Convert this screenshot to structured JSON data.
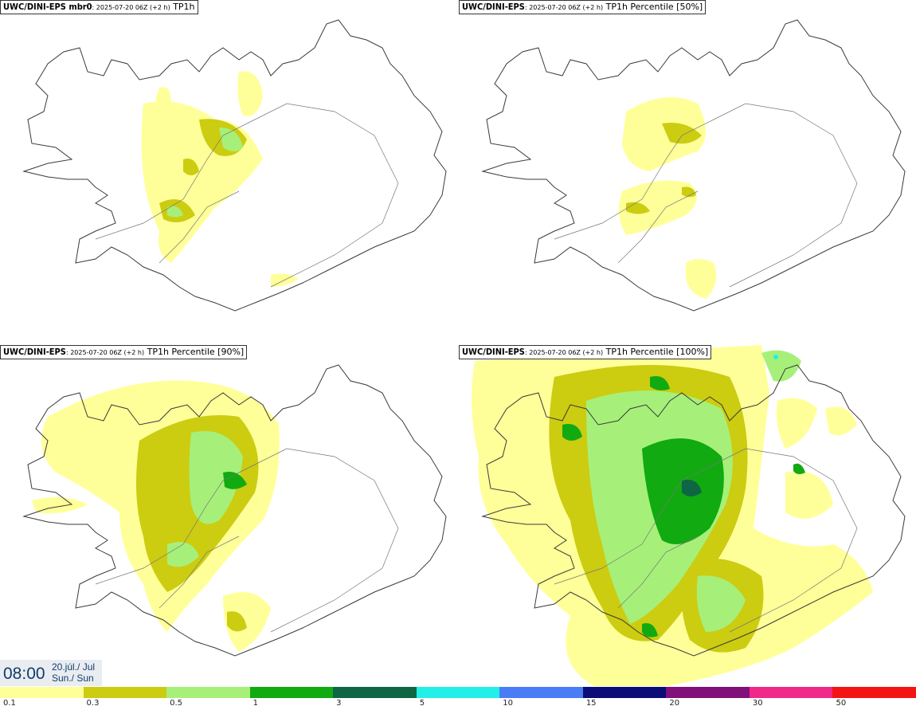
{
  "panels": [
    {
      "model": "UWC/DINI-EPS mbr0",
      "run": "2025-07-20 06Z (+2 h)",
      "field": "TP1h"
    },
    {
      "model": "UWC/DINI-EPS",
      "run": "2025-07-20 06Z (+2 h)",
      "field": "TP1h Percentile [50%]"
    },
    {
      "model": "UWC/DINI-EPS",
      "run": "2025-07-20 06Z (+2 h)",
      "field": "TP1h Percentile [90%]"
    },
    {
      "model": "UWC/DINI-EPS",
      "run": "2025-07-20 06Z (+2 h)",
      "field": "TP1h Percentile [100%]"
    }
  ],
  "valid_time": {
    "time": "08:00",
    "date_line1": "20.júl./ Jul",
    "date_line2": "Sun./ Sun"
  },
  "legend": {
    "labels": [
      "0.1",
      "0.3",
      "0.5",
      "1",
      "3",
      "5",
      "10",
      "15",
      "20",
      "30",
      "50"
    ],
    "colors": [
      "#ffff99",
      "#cccc11",
      "#a6f07a",
      "#11aa11",
      "#0f6644",
      "#22f0e8",
      "#4a7cf5",
      "#0c0c78",
      "#80107a",
      "#f0288a",
      "#f51414"
    ]
  }
}
